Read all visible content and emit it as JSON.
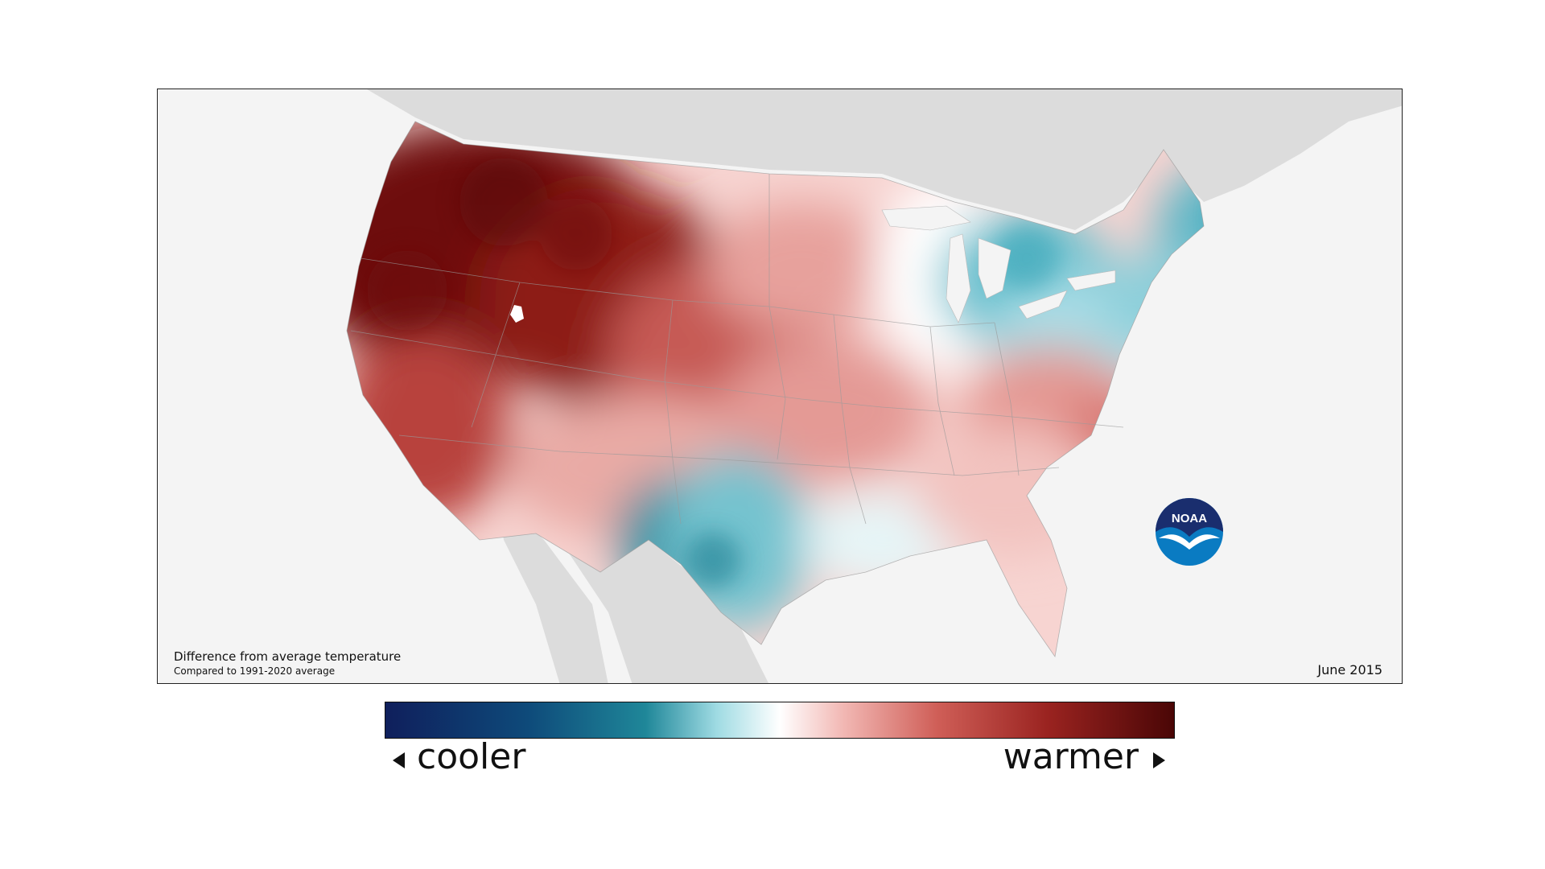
{
  "map": {
    "caption_title": "Difference from average temperature",
    "caption_subtitle": "Compared to 1991-2020 average",
    "date": "June 2015",
    "logo_text": "NOAA",
    "colors": {
      "background": "#f4f4f4",
      "land_outside": "#dddddd",
      "cool_strong": "#1f8799",
      "cool_light": "#bfe9ee",
      "neutral": "#ffffff",
      "warm_light": "#f2b8b4",
      "warm_mid": "#cf5e57",
      "warm_strong": "#7a1210"
    },
    "regions": [
      {
        "name": "Pacific Northwest",
        "anomaly": "much warmer"
      },
      {
        "name": "Northern Rockies",
        "anomaly": "much warmer"
      },
      {
        "name": "Texas",
        "anomaly": "cooler"
      },
      {
        "name": "Great Lakes",
        "anomaly": "cooler"
      },
      {
        "name": "New England",
        "anomaly": "cooler"
      },
      {
        "name": "Southeast",
        "anomaly": "warmer"
      }
    ]
  },
  "legend": {
    "left_label": "cooler",
    "right_label": "warmer"
  }
}
